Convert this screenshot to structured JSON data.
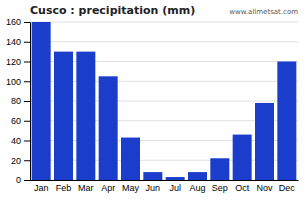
{
  "chart_data": {
    "type": "bar",
    "title": "Cusco : precipitation (mm)",
    "categories": [
      "Jan",
      "Feb",
      "Mar",
      "Apr",
      "May",
      "Jun",
      "Jul",
      "Aug",
      "Sep",
      "Oct",
      "Nov",
      "Dec"
    ],
    "values": [
      160,
      130,
      130,
      105,
      43,
      8,
      3,
      8,
      22,
      46,
      78,
      120
    ],
    "color": "#1a3dcc",
    "ylim": [
      0,
      160
    ],
    "yticks": [
      0,
      20,
      40,
      60,
      80,
      100,
      120,
      140,
      160
    ],
    "grid": true,
    "annotations": [
      "www.allmetsat.com"
    ]
  }
}
